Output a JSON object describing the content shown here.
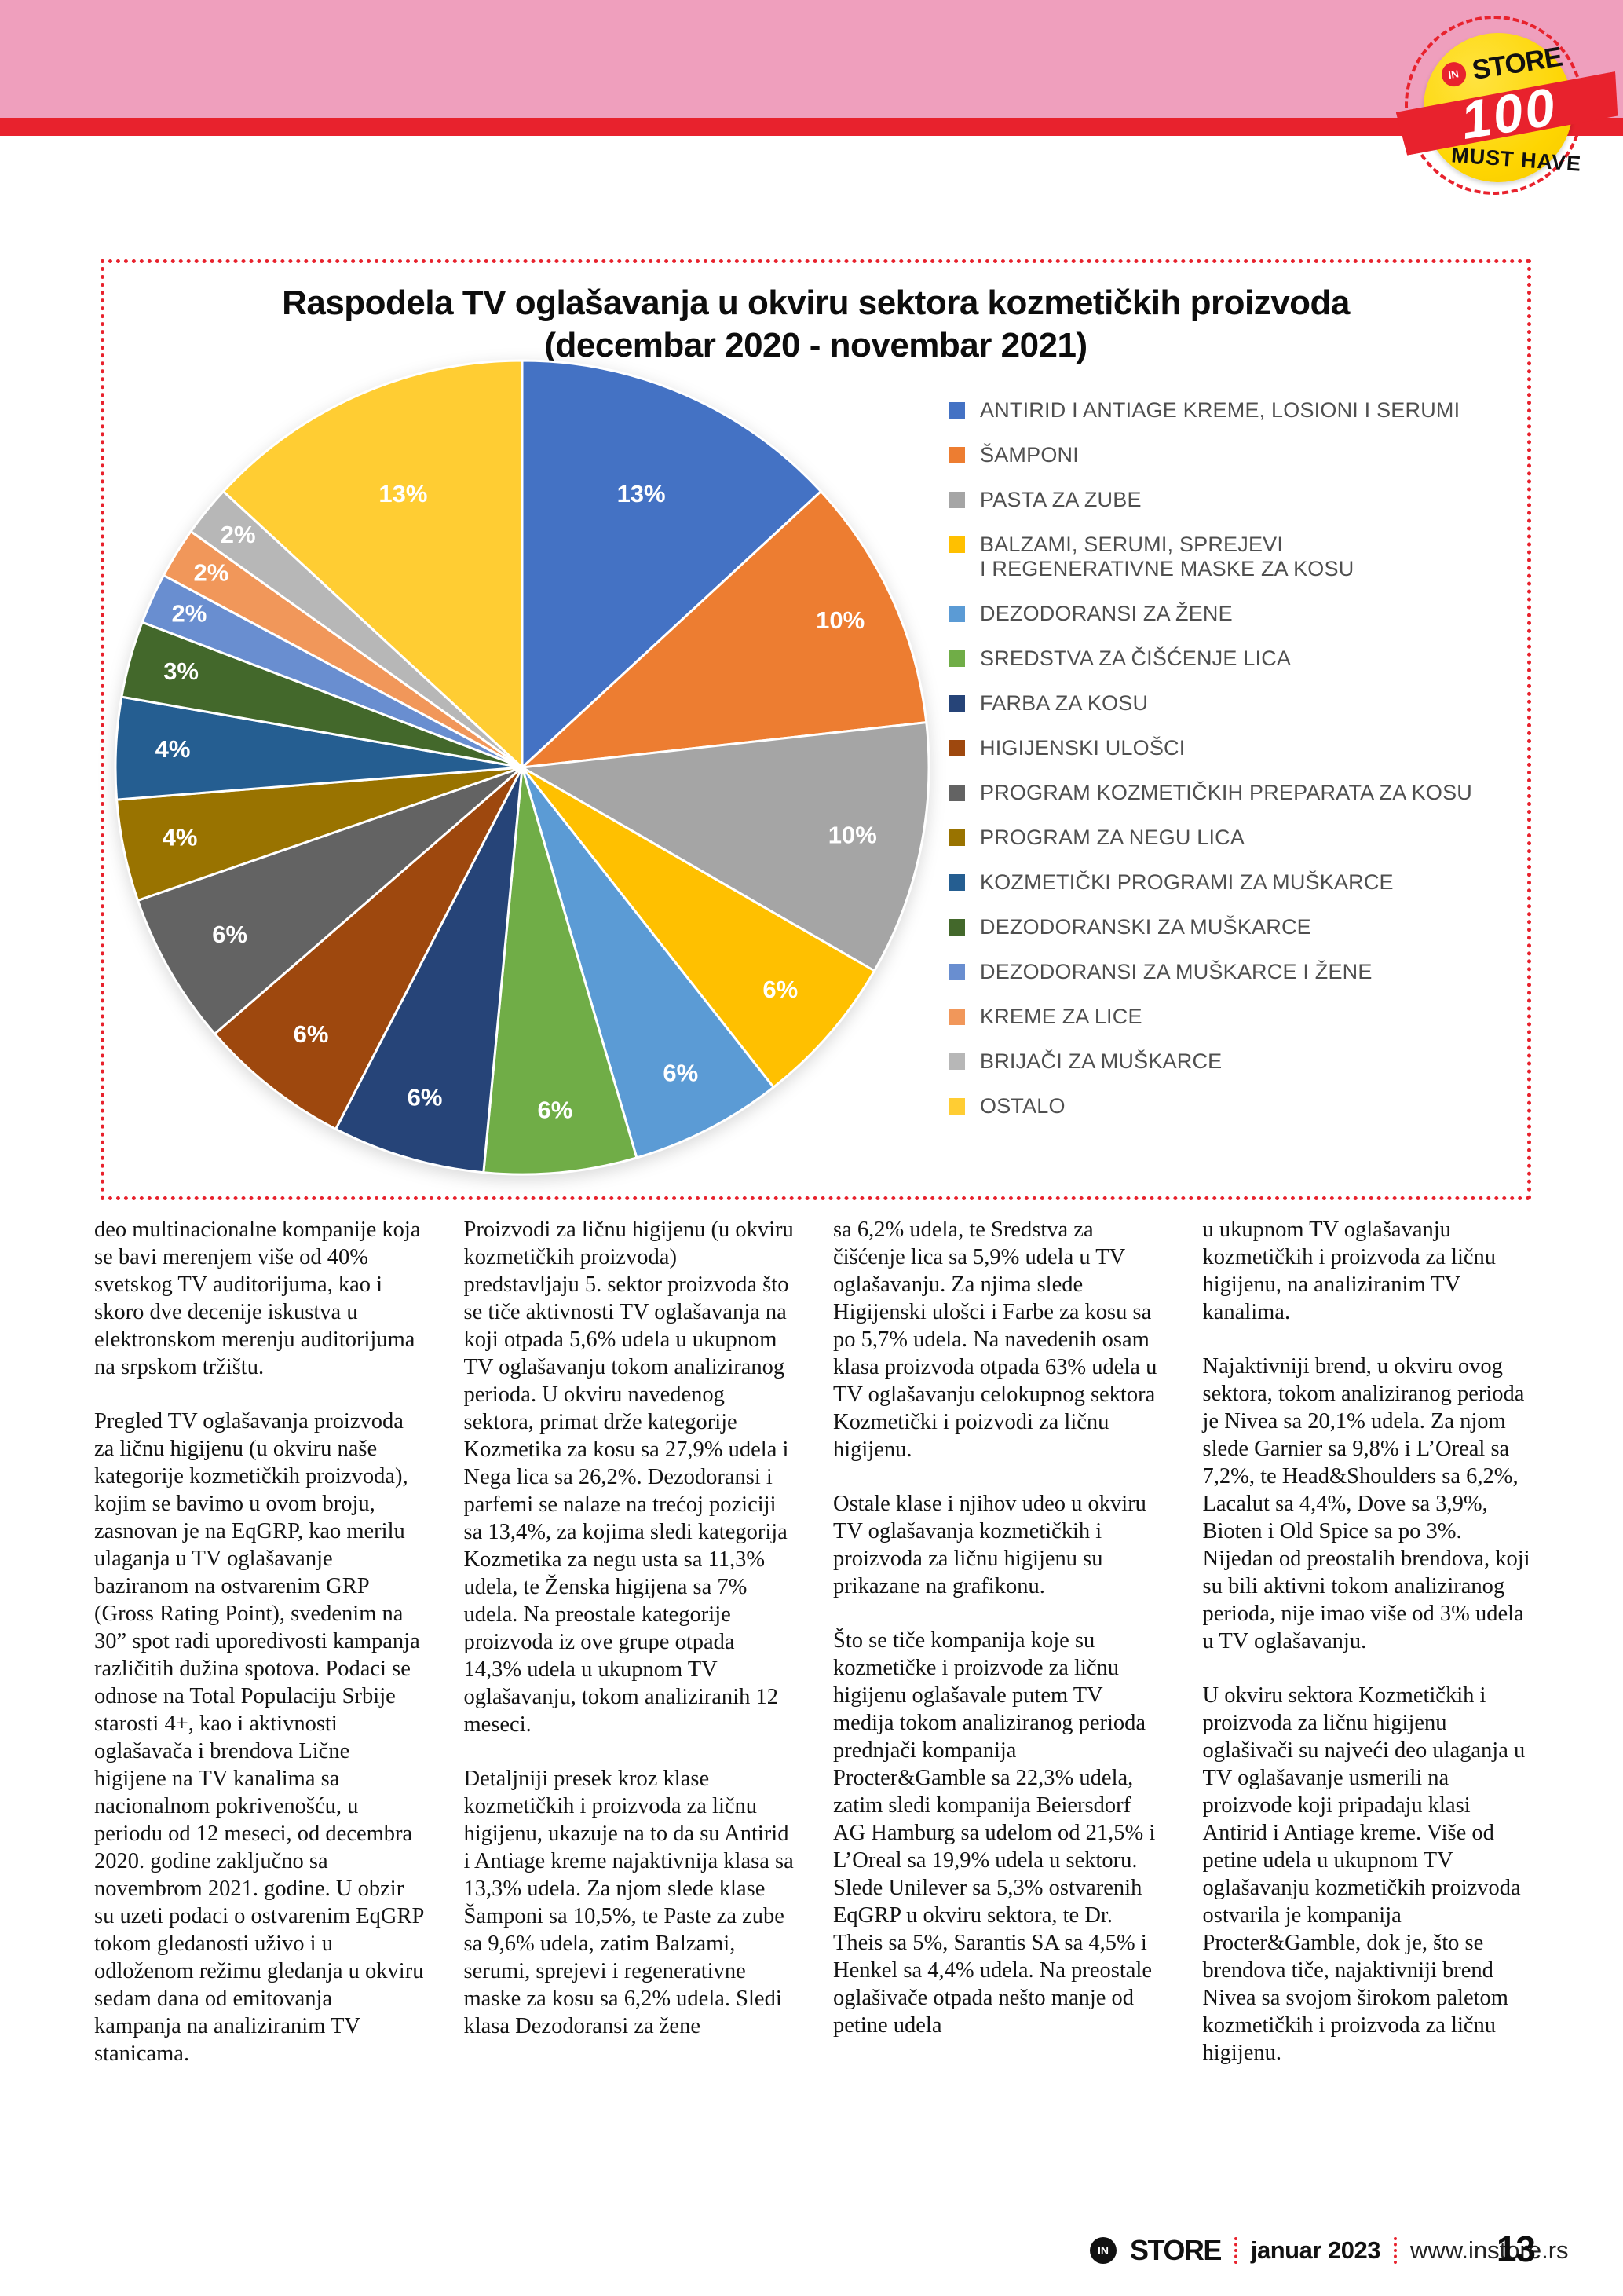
{
  "badge": {
    "in": "IN",
    "store": "STORE",
    "number": "100",
    "tagline": "MUST HAVE"
  },
  "chart": {
    "title_line1": "Raspodela TV oglašavanja u okviru sektora kozmetičkih proizvoda",
    "title_line2": "(decembar 2020 - novembar 2021)"
  },
  "chart_data": {
    "type": "pie",
    "title": "Raspodela TV oglašavanja u okviru sektora kozmetičkih proizvoda (decembar 2020 - novembar 2021)",
    "unit": "percent",
    "legend_position": "right",
    "start_angle_deg": 0,
    "direction": "clockwise",
    "slices": [
      {
        "label": "ANTIRID I ANTIAGE KREME, LOSIONI I SERUMI",
        "value": 13,
        "color": "#4472c4",
        "label_r": 0.73
      },
      {
        "label": "ŠAMPONI",
        "value": 10,
        "color": "#ed7d31",
        "label_r": 0.86
      },
      {
        "label": "PASTA ZA ZUBE",
        "value": 10,
        "color": "#a5a5a5",
        "label_r": 0.83
      },
      {
        "label": "BALZAMI, SERUMI, SPREJEVI\nI REGENERATIVNE MASKE ZA KOSU",
        "value": 6,
        "color": "#ffc000",
        "label_r": 0.84
      },
      {
        "label": "DEZODORANSI ZA ŽENE",
        "value": 6,
        "color": "#5b9bd5",
        "label_r": 0.85
      },
      {
        "label": "SREDSTVA ZA ČIŠĆENJE LICA",
        "value": 6,
        "color": "#70ad47",
        "label_r": 0.85
      },
      {
        "label": "FARBA ZA KOSU",
        "value": 6,
        "color": "#264478",
        "label_r": 0.85
      },
      {
        "label": "HIGIJENSKI ULOŠCI",
        "value": 6,
        "color": "#9e480e",
        "label_r": 0.84
      },
      {
        "label": "PROGRAM KOZMETIČKIH PREPARATA ZA KOSU",
        "value": 6,
        "color": "#636363",
        "label_r": 0.83
      },
      {
        "label": "PROGRAM ZA NEGU LICA",
        "value": 4,
        "color": "#997300",
        "label_r": 0.86
      },
      {
        "label": "KOZMETIČKI PROGRAMI ZA MUŠKARCE",
        "value": 4,
        "color": "#255e91",
        "label_r": 0.86
      },
      {
        "label": "DEZODORANSKI ZA MUŠKARCE",
        "value": 3,
        "color": "#43682b",
        "label_r": 0.87
      },
      {
        "label": "DEZODORANSI ZA MUŠKARCE I ŽENE",
        "value": 2,
        "color": "#698ed0",
        "label_r": 0.9
      },
      {
        "label": "KREME ZA LICE",
        "value": 2,
        "color": "#f1975a",
        "label_r": 0.9
      },
      {
        "label": "BRIJAČI ZA MUŠKARCE",
        "value": 2,
        "color": "#b7b7b7",
        "label_r": 0.9
      },
      {
        "label": "OSTALO",
        "value": 13,
        "color": "#ffcd33",
        "label_r": 0.73
      }
    ]
  },
  "article": {
    "columns": [
      [
        "deo multinacionalne kompanije koja se bavi merenjem više od 40% svetskog TV auditorijuma, kao i skoro dve decenije iskustva u elektronskom merenju auditorijuma na srpskom tržištu.",
        "Pregled TV oglašavanja proizvoda za ličnu higijenu (u okviru naše kategorije kozmetičkih proizvoda), kojim se bavimo u ovom broju, zasnovan je na EqGRP, kao merilu ulaganja u TV oglašavanje baziranom na ostvarenim GRP (Gross Rating Point), svedenim na 30” spot radi uporedivosti kampanja različitih dužina spotova. Podaci se odnose na Total Populaciju Srbije starosti 4+, kao i aktivnosti oglašavača i brendova Lične higijene na TV kanalima sa nacionalnom pokrivenošću, u periodu od 12 meseci, od decembra 2020. godine zaključno sa novembrom 2021. godine. U obzir su uzeti podaci o ostvarenim EqGRP tokom gledanosti uživo i u odloženom režimu gledanja u okviru sedam dana od emitovanja kampanja na analiziranim TV stanicama."
      ],
      [
        "Proizvodi za ličnu higijenu (u okviru kozmetičkih proizvoda) predstavljaju 5. sektor proizvoda što se tiče aktivnosti TV oglašavanja na koji otpada 5,6% udela u ukupnom TV oglašavanju tokom analiziranog perioda. U okviru navedenog sektora, primat drže kategorije Kozmetika za kosu sa 27,9% udela i Nega lica sa 26,2%. Dezodoransi i parfemi se nalaze na trećoj poziciji sa 13,4%, za kojima sledi kategorija Kozmetika za negu usta sa 11,3% udela, te Ženska higijena sa 7% udela. Na preostale kategorije proizvoda iz ove grupe otpada 14,3% udela u ukupnom TV oglašavanju, tokom analiziranih 12 meseci.",
        "Detaljniji presek kroz klase kozmetičkih i proizvoda za ličnu higijenu, ukazuje na to da su Antirid i Antiage kreme najaktivnija klasa sa 13,3% udela. Za njom slede klase Šamponi sa 10,5%, te Paste za zube sa 9,6% udela, zatim Balzami, serumi, sprejevi i regenerativne maske za kosu sa 6,2% udela. Sledi klasa Dezodoransi za žene"
      ],
      [
        "sa 6,2% udela, te Sredstva za čišćenje lica sa 5,9% udela u TV oglašavanju. Za njima slede Higijenski ulošci i Farbe za kosu sa po 5,7% udela. Na navedenih osam klasa proizvoda otpada 63% udela u TV oglašavanju celokupnog sektora Kozmetički i poizvodi za ličnu higijenu.",
        "Ostale klase i njihov udeo u okviru TV oglašavanja kozmetičkih i proizvoda za ličnu higijenu su prikazane na grafikonu.",
        "Što se tiče kompanija koje su kozmetičke i proizvode za ličnu higijenu oglašavale putem TV medija tokom analiziranog perioda prednjači kompanija Procter&Gamble sa 22,3% udela, zatim sledi kompanija Beiersdorf AG Hamburg sa udelom od 21,5% i L’Oreal sa 19,9% udela u sektoru. Slede Unilever sa 5,3% ostvarenih EqGRP u okviru sektora, te Dr. Theis sa 5%, Sarantis SA sa 4,5% i Henkel sa 4,4% udela. Na preostale oglašivače otpada nešto manje od petine udela"
      ],
      [
        "u ukupnom TV oglašavanju kozmetičkih i proizvoda za ličnu higijenu, na analiziranim TV kanalima.",
        "Najaktivniji brend, u okviru ovog sektora, tokom analiziranog perioda je Nivea sa 20,1% udela. Za njom slede Garnier sa 9,8% i L’Oreal sa 7,2%, te Head&Shoulders sa 6,2%, Lacalut sa 4,4%, Dove sa 3,9%, Bioten i Old Spice sa po 3%. Nijedan od preostalih brendova, koji su bili aktivni tokom analiziranog perioda, nije imao više od 3% udela u TV oglašavanju.",
        "U okviru sektora Kozmetičkih i proizvoda za ličnu higijenu oglašivači su najveći deo ulaganja u TV oglašavanje usmerili na proizvode koji pripadaju klasi Antirid i Antiage kreme. Više od petine udela u ukupnom TV oglašavanju kozmetičkih proizvoda ostvarila je kompanija Procter&Gamble, dok je, što se brendova tiče, najaktivniji brend Nivea sa svojom širokom paletom kozmetičkih i proizvoda za ličnu higijenu."
      ]
    ]
  },
  "footer": {
    "logo_in": "IN",
    "logo_store": "STORE",
    "date": "januar 2023",
    "url": "www.instore.rs",
    "page_number": "13"
  },
  "colors": {
    "accent_red": "#e8222d",
    "header_pink": "#ef9fbd"
  }
}
